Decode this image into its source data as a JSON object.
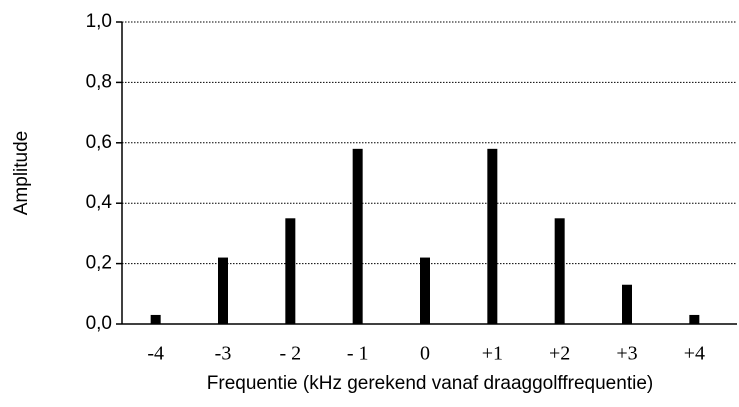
{
  "chart_data": {
    "type": "bar",
    "xlabel": "Frequentie (kHz gerekend vanaf draaggolffrequentie)",
    "ylabel": "Amplitude",
    "categories": [
      "-4",
      "-3",
      "- 2",
      "- 1",
      "0",
      "+1",
      "+2",
      "+3",
      "+4"
    ],
    "values": [
      0.03,
      0.22,
      0.35,
      0.58,
      0.22,
      0.58,
      0.35,
      0.13,
      0.03
    ],
    "color": "#000000",
    "ylim": [
      0,
      1
    ],
    "yticks": [
      {
        "value": 0,
        "label": "0,0"
      },
      {
        "value": 0.2,
        "label": "0,2"
      },
      {
        "value": 0.4,
        "label": "0,4"
      },
      {
        "value": 0.6,
        "label": "0,6"
      },
      {
        "value": 0.8,
        "label": "0,8"
      },
      {
        "value": 1,
        "label": "1,0"
      }
    ],
    "grid": true
  }
}
